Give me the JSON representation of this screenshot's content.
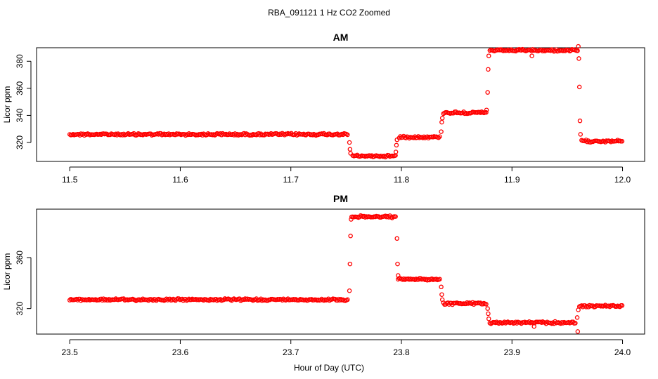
{
  "chart_data": [
    {
      "type": "scatter",
      "title": "AM",
      "ylabel": "Licor ppm",
      "xlim": [
        11.47,
        12.02
      ],
      "ylim": [
        306,
        390
      ],
      "xticks": [
        11.5,
        11.6,
        11.7,
        11.8,
        11.9,
        12.0
      ],
      "xtick_labels": [
        "11.5",
        "11.6",
        "11.7",
        "11.8",
        "11.9",
        "12.0"
      ],
      "yticks": [
        320,
        340,
        360,
        380
      ],
      "ytick_labels": [
        "320",
        "340",
        "360",
        "380"
      ],
      "grid": false,
      "color": "#ff0000",
      "series": [
        {
          "segments": [
            {
              "x_start": 11.5,
              "x_end": 11.752,
              "y": 326
            },
            {
              "x_start": 11.756,
              "x_end": 11.795,
              "y": 310
            },
            {
              "x_start": 11.798,
              "x_end": 11.835,
              "y": 324
            },
            {
              "x_start": 11.838,
              "x_end": 11.877,
              "y": 342
            },
            {
              "x_start": 11.88,
              "x_end": 11.96,
              "y": 388
            },
            {
              "x_start": 11.963,
              "x_end": 12.0,
              "y": 321
            }
          ],
          "transition_points": [
            {
              "x": 11.753,
              "y": 320
            },
            {
              "x": 11.7535,
              "y": 315
            },
            {
              "x": 11.754,
              "y": 312
            },
            {
              "x": 11.795,
              "y": 313
            },
            {
              "x": 11.7955,
              "y": 318
            },
            {
              "x": 11.796,
              "y": 322
            },
            {
              "x": 11.836,
              "y": 328
            },
            {
              "x": 11.8365,
              "y": 335
            },
            {
              "x": 11.837,
              "y": 338
            },
            {
              "x": 11.877,
              "y": 344
            },
            {
              "x": 11.878,
              "y": 357
            },
            {
              "x": 11.8785,
              "y": 374
            },
            {
              "x": 11.879,
              "y": 384
            },
            {
              "x": 11.918,
              "y": 384
            },
            {
              "x": 11.96,
              "y": 391
            },
            {
              "x": 11.9605,
              "y": 382
            },
            {
              "x": 11.961,
              "y": 361
            },
            {
              "x": 11.9615,
              "y": 336
            },
            {
              "x": 11.962,
              "y": 326
            }
          ]
        }
      ]
    },
    {
      "type": "scatter",
      "title": "PM",
      "ylabel": "Licor ppm",
      "xlabel": "Hour of Day (UTC)",
      "xlim": [
        23.47,
        24.02
      ],
      "ylim": [
        300,
        398
      ],
      "xticks": [
        23.5,
        23.6,
        23.7,
        23.8,
        23.9,
        24.0
      ],
      "xtick_labels": [
        "23.5",
        "23.6",
        "23.7",
        "23.8",
        "23.9",
        "24.0"
      ],
      "yticks": [
        320,
        360
      ],
      "ytick_labels": [
        "320",
        "360"
      ],
      "grid": false,
      "color": "#ff0000",
      "series": [
        {
          "segments": [
            {
              "x_start": 23.5,
              "x_end": 23.752,
              "y": 327
            },
            {
              "x_start": 23.755,
              "x_end": 23.795,
              "y": 392
            },
            {
              "x_start": 23.797,
              "x_end": 23.835,
              "y": 343
            },
            {
              "x_start": 23.838,
              "x_end": 23.877,
              "y": 324
            },
            {
              "x_start": 23.88,
              "x_end": 23.958,
              "y": 309
            },
            {
              "x_start": 23.961,
              "x_end": 24.0,
              "y": 322
            }
          ],
          "transition_points": [
            {
              "x": 23.753,
              "y": 334
            },
            {
              "x": 23.7535,
              "y": 355
            },
            {
              "x": 23.754,
              "y": 377
            },
            {
              "x": 23.7545,
              "y": 390
            },
            {
              "x": 23.796,
              "y": 375
            },
            {
              "x": 23.7965,
              "y": 355
            },
            {
              "x": 23.797,
              "y": 346
            },
            {
              "x": 23.836,
              "y": 337
            },
            {
              "x": 23.8365,
              "y": 331
            },
            {
              "x": 23.837,
              "y": 327
            },
            {
              "x": 23.878,
              "y": 320
            },
            {
              "x": 23.8785,
              "y": 316
            },
            {
              "x": 23.879,
              "y": 312
            },
            {
              "x": 23.92,
              "y": 306
            },
            {
              "x": 23.959,
              "y": 313
            },
            {
              "x": 23.9595,
              "y": 302
            },
            {
              "x": 23.96,
              "y": 319
            }
          ]
        }
      ]
    }
  ],
  "figure": {
    "title": "RBA_091121  1 Hz CO2 Zoomed",
    "xlabel": "Hour of Day (UTC)"
  }
}
